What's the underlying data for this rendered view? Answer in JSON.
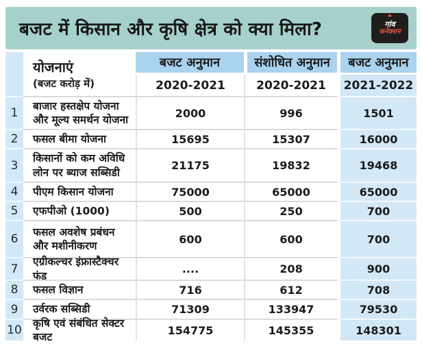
{
  "banner": {
    "title": "बजट में किसान और कृषि क्षेत्र को क्या मिला?",
    "logo_line1": "गांव",
    "logo_line2": "कनेक्शन"
  },
  "table": {
    "col1_title": "योजनाएं",
    "col1_subtitle": "(बजट करोड़ में)",
    "head2_label": "बजट अनुमान",
    "head2_year": "2020-2021",
    "head3_label": "संशोधित अनुमान",
    "head3_year": "2020-2021",
    "head4_label": "बजट अनुमान",
    "head4_year": "2021-2022",
    "rows": [
      {
        "num": "1",
        "scheme": "बाजार हस्तक्षेप योजना और मूल्य समर्थन योजना",
        "v1": "2000",
        "v2": "996",
        "v3": "1501"
      },
      {
        "num": "2",
        "scheme": "फसल बीमा योजना",
        "v1": "15695",
        "v2": "15307",
        "v3": "16000"
      },
      {
        "num": "3",
        "scheme": "किसानों को कम अविधि लोन पर ब्याज सब्सिडी",
        "v1": "21175",
        "v2": "19832",
        "v3": "19468"
      },
      {
        "num": "4",
        "scheme": "पीएम किसान योजना",
        "v1": "75000",
        "v2": "65000",
        "v3": "65000"
      },
      {
        "num": "5",
        "scheme": "एफपीओ (1000)",
        "v1": "500",
        "v2": "250",
        "v3": "700"
      },
      {
        "num": "6",
        "scheme": "फसल अवशेष प्रबंधन और मशीनीकरण",
        "v1": "600",
        "v2": "600",
        "v3": "700"
      },
      {
        "num": "7",
        "scheme": "एग्रीकल्चर इंफ्रास्टैक्चर फंड",
        "v1": "....",
        "v2": "208",
        "v3": "900"
      },
      {
        "num": "8",
        "scheme": "फसल विज्ञान",
        "v1": "716",
        "v2": "612",
        "v3": "708"
      },
      {
        "num": "9",
        "scheme": "उर्वरक सब्सिडी",
        "v1": "71309",
        "v2": "133947",
        "v3": "79530"
      },
      {
        "num": "10",
        "scheme": "कृषि एवं संबंधित सेक्टर बजट",
        "v1": "154775",
        "v2": "145355",
        "v3": "148301"
      }
    ]
  },
  "colors": {
    "banner_teal": "#a6d0cb",
    "header_blue": "#a9d3ee",
    "light_blue_cell": "#d2e8f7",
    "text": "#1b1b1b",
    "logo_bg": "#201d1c",
    "logo_red": "#e0523f"
  },
  "chart_data": {
    "type": "table",
    "title": "बजट में किसान और कृषि क्षेत्र को क्या मिला?",
    "unit_note": "(बजट करोड़ में)",
    "columns": [
      "योजनाएं",
      "बजट अनुमान 2020-2021",
      "संशोधित अनुमान 2020-2021",
      "बजट अनुमान 2021-2022"
    ],
    "rows": [
      [
        "बाजार हस्तक्षेप योजना और मूल्य समर्थन योजना",
        2000,
        996,
        1501
      ],
      [
        "फसल बीमा योजना",
        15695,
        15307,
        16000
      ],
      [
        "किसानों को कम अविधि लोन पर ब्याज सब्सिडी",
        21175,
        19832,
        19468
      ],
      [
        "पीएम किसान योजना",
        75000,
        65000,
        65000
      ],
      [
        "एफपीओ (1000)",
        500,
        250,
        700
      ],
      [
        "फसल अवशेष प्रबंधन और मशीनीकरण",
        600,
        600,
        700
      ],
      [
        "एग्रीकल्चर इंफ्रास्टैक्चर फंड",
        "....",
        208,
        900
      ],
      [
        "फसल विज्ञान",
        716,
        612,
        708
      ],
      [
        "उर्वरक सब्सिडी",
        71309,
        133947,
        79530
      ],
      [
        "कृषि एवं संबंधित सेक्टर बजट",
        154775,
        145355,
        148301
      ]
    ]
  }
}
